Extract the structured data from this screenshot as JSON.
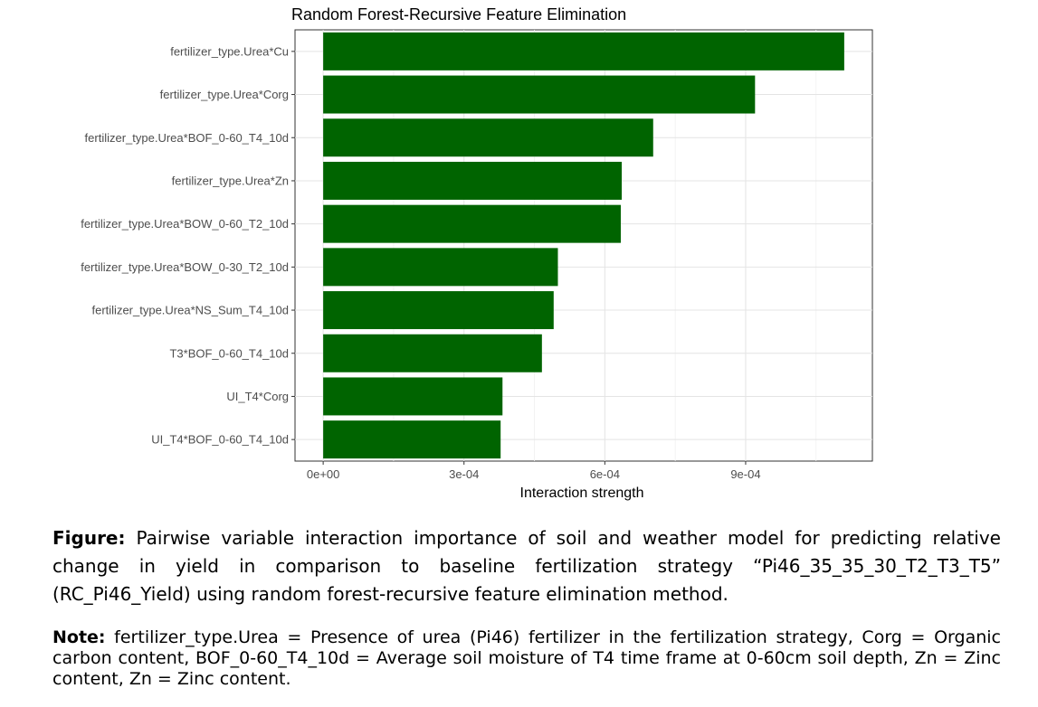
{
  "chart_data": {
    "type": "bar",
    "orientation": "horizontal",
    "title": "Random Forest-Recursive Feature Elimination",
    "xlabel": "Interaction strength",
    "ylabel": "",
    "categories": [
      "fertilizer_type.Urea*Cu",
      "fertilizer_type.Urea*Corg",
      "fertilizer_type.Urea*BOF_0-60_T4_10d",
      "fertilizer_type.Urea*Zn",
      "fertilizer_type.Urea*BOW_0-60_T2_10d",
      "fertilizer_type.Urea*BOW_0-30_T2_10d",
      "fertilizer_type.Urea*NS_Sum_T4_10d",
      "T3*BOF_0-60_T4_10d",
      "UI_T4*Corg",
      "UI_T4*BOF_0-60_T4_10d"
    ],
    "values": [
      0.00111,
      0.00092,
      0.000703,
      0.000636,
      0.000634,
      0.0005,
      0.000491,
      0.000466,
      0.000382,
      0.000378
    ],
    "xlim": [
      -6e-05,
      0.00117
    ],
    "xticks": [
      0,
      0.0003,
      0.0006,
      0.0009
    ],
    "xtick_labels": [
      "0e+00",
      "3e-04",
      "6e-04",
      "9e-04"
    ],
    "bar_color": "#006400",
    "grid": true
  },
  "caption": {
    "figure_label": "Figure:",
    "figure_text": " Pairwise variable interaction importance of soil and weather model for predicting relative change in yield in comparison to baseline fertilization strategy “Pi46_35_35_30_T2_T3_T5” (RC_Pi46_Yield) using random forest-recursive feature elimination method.",
    "note_label": "Note:",
    "note_text": " fertilizer_type.Urea =  Presence of urea (Pi46) fertilizer in the fertilization strategy, Corg = Organic carbon content, BOF_0-60_T4_10d = Average soil moisture of T4 time frame at 0-60cm soil depth, Zn = Zinc content, Zn = Zinc content."
  }
}
